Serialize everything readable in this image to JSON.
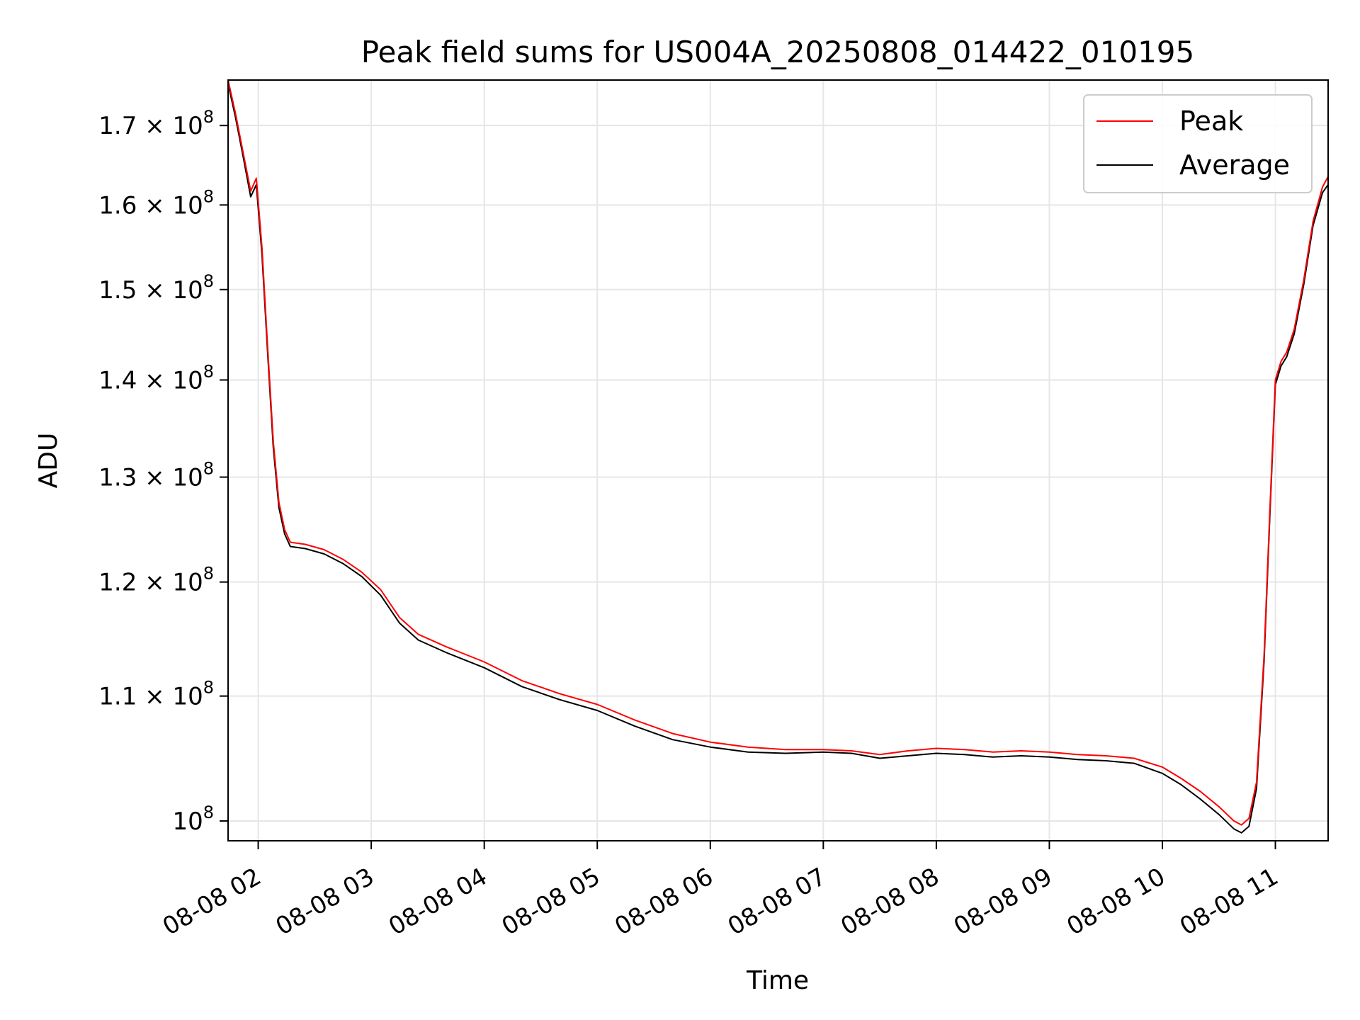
{
  "chart_data": {
    "type": "line",
    "title": "Peak field sums for US004A_20250808_014422_010195",
    "xlabel": "Time",
    "ylabel": "ADU",
    "yscale": "log",
    "grid": true,
    "legend_placement": "top-right",
    "x_range": [
      "08-08 01:44",
      "08-08 11:28"
    ],
    "y_range": [
      98500000,
      176000000
    ],
    "x_ticks": [
      {
        "t": "08-08 02:00",
        "label": "08-08 02"
      },
      {
        "t": "08-08 03:00",
        "label": "08-08 03"
      },
      {
        "t": "08-08 04:00",
        "label": "08-08 04"
      },
      {
        "t": "08-08 05:00",
        "label": "08-08 05"
      },
      {
        "t": "08-08 06:00",
        "label": "08-08 06"
      },
      {
        "t": "08-08 07:00",
        "label": "08-08 07"
      },
      {
        "t": "08-08 08:00",
        "label": "08-08 08"
      },
      {
        "t": "08-08 09:00",
        "label": "08-08 09"
      },
      {
        "t": "08-08 10:00",
        "label": "08-08 10"
      },
      {
        "t": "08-08 11:00",
        "label": "08-08 11"
      }
    ],
    "y_ticks": [
      {
        "v": 100000000,
        "mant": "",
        "exp": "8"
      },
      {
        "v": 110000000,
        "mant": "1.1",
        "exp": "8"
      },
      {
        "v": 120000000,
        "mant": "1.2",
        "exp": "8"
      },
      {
        "v": 130000000,
        "mant": "1.3",
        "exp": "8"
      },
      {
        "v": 140000000,
        "mant": "1.4",
        "exp": "8"
      },
      {
        "v": 150000000,
        "mant": "1.5",
        "exp": "8"
      },
      {
        "v": 160000000,
        "mant": "1.6",
        "exp": "8"
      },
      {
        "v": 170000000,
        "mant": "1.7",
        "exp": "8"
      }
    ],
    "series": [
      {
        "name": "Average",
        "color": "#000000",
        "points": [
          [
            "08-08 01:44",
            175500000
          ],
          [
            "08-08 01:48",
            171000000
          ],
          [
            "08-08 01:52",
            166000000
          ],
          [
            "08-08 01:56",
            161000000
          ],
          [
            "08-08 01:59",
            162500000
          ],
          [
            "08-08 02:02",
            154000000
          ],
          [
            "08-08 02:05",
            143000000
          ],
          [
            "08-08 02:08",
            133000000
          ],
          [
            "08-08 02:11",
            127000000
          ],
          [
            "08-08 02:14",
            124500000
          ],
          [
            "08-08 02:17",
            123300000
          ],
          [
            "08-08 02:25",
            123100000
          ],
          [
            "08-08 02:35",
            122600000
          ],
          [
            "08-08 02:45",
            121700000
          ],
          [
            "08-08 02:55",
            120500000
          ],
          [
            "08-08 03:05",
            118800000
          ],
          [
            "08-08 03:15",
            116300000
          ],
          [
            "08-08 03:25",
            114800000
          ],
          [
            "08-08 03:40",
            113700000
          ],
          [
            "08-08 04:00",
            112400000
          ],
          [
            "08-08 04:20",
            110800000
          ],
          [
            "08-08 04:40",
            109700000
          ],
          [
            "08-08 05:00",
            108800000
          ],
          [
            "08-08 05:20",
            107500000
          ],
          [
            "08-08 05:40",
            106400000
          ],
          [
            "08-08 06:00",
            105800000
          ],
          [
            "08-08 06:20",
            105400000
          ],
          [
            "08-08 06:40",
            105300000
          ],
          [
            "08-08 07:00",
            105400000
          ],
          [
            "08-08 07:15",
            105300000
          ],
          [
            "08-08 07:30",
            104900000
          ],
          [
            "08-08 07:45",
            105100000
          ],
          [
            "08-08 08:00",
            105300000
          ],
          [
            "08-08 08:15",
            105200000
          ],
          [
            "08-08 08:30",
            105000000
          ],
          [
            "08-08 08:45",
            105100000
          ],
          [
            "08-08 09:00",
            105000000
          ],
          [
            "08-08 09:15",
            104800000
          ],
          [
            "08-08 09:30",
            104700000
          ],
          [
            "08-08 09:45",
            104500000
          ],
          [
            "08-08 10:00",
            103700000
          ],
          [
            "08-08 10:10",
            102800000
          ],
          [
            "08-08 10:20",
            101700000
          ],
          [
            "08-08 10:30",
            100500000
          ],
          [
            "08-08 10:38",
            99400000
          ],
          [
            "08-08 10:42",
            99100000
          ],
          [
            "08-08 10:46",
            99600000
          ],
          [
            "08-08 10:50",
            102500000
          ],
          [
            "08-08 10:54",
            113000000
          ],
          [
            "08-08 10:57",
            126000000
          ],
          [
            "08-08 11:00",
            139500000
          ],
          [
            "08-08 11:03",
            141500000
          ],
          [
            "08-08 11:06",
            142500000
          ],
          [
            "08-08 11:10",
            145000000
          ],
          [
            "08-08 11:15",
            150500000
          ],
          [
            "08-08 11:20",
            157500000
          ],
          [
            "08-08 11:25",
            161500000
          ],
          [
            "08-08 11:28",
            162500000
          ]
        ]
      },
      {
        "name": "Peak",
        "color": "#ff0000",
        "points": [
          [
            "08-08 01:44",
            176000000
          ],
          [
            "08-08 01:48",
            171500000
          ],
          [
            "08-08 01:52",
            166500000
          ],
          [
            "08-08 01:56",
            161700000
          ],
          [
            "08-08 01:59",
            163300000
          ],
          [
            "08-08 02:02",
            154800000
          ],
          [
            "08-08 02:05",
            143600000
          ],
          [
            "08-08 02:08",
            133600000
          ],
          [
            "08-08 02:11",
            127500000
          ],
          [
            "08-08 02:14",
            124900000
          ],
          [
            "08-08 02:17",
            123700000
          ],
          [
            "08-08 02:25",
            123500000
          ],
          [
            "08-08 02:35",
            123000000
          ],
          [
            "08-08 02:45",
            122100000
          ],
          [
            "08-08 02:55",
            120900000
          ],
          [
            "08-08 03:05",
            119300000
          ],
          [
            "08-08 03:15",
            116800000
          ],
          [
            "08-08 03:25",
            115300000
          ],
          [
            "08-08 03:40",
            114200000
          ],
          [
            "08-08 04:00",
            112900000
          ],
          [
            "08-08 04:20",
            111300000
          ],
          [
            "08-08 04:40",
            110200000
          ],
          [
            "08-08 05:00",
            109300000
          ],
          [
            "08-08 05:20",
            108000000
          ],
          [
            "08-08 05:40",
            106900000
          ],
          [
            "08-08 06:00",
            106200000
          ],
          [
            "08-08 06:20",
            105800000
          ],
          [
            "08-08 06:40",
            105600000
          ],
          [
            "08-08 07:00",
            105600000
          ],
          [
            "08-08 07:15",
            105500000
          ],
          [
            "08-08 07:30",
            105200000
          ],
          [
            "08-08 07:45",
            105500000
          ],
          [
            "08-08 08:00",
            105700000
          ],
          [
            "08-08 08:15",
            105600000
          ],
          [
            "08-08 08:30",
            105400000
          ],
          [
            "08-08 08:45",
            105500000
          ],
          [
            "08-08 09:00",
            105400000
          ],
          [
            "08-08 09:15",
            105200000
          ],
          [
            "08-08 09:30",
            105100000
          ],
          [
            "08-08 09:45",
            104900000
          ],
          [
            "08-08 10:00",
            104200000
          ],
          [
            "08-08 10:10",
            103300000
          ],
          [
            "08-08 10:20",
            102300000
          ],
          [
            "08-08 10:30",
            101100000
          ],
          [
            "08-08 10:38",
            100000000
          ],
          [
            "08-08 10:42",
            99700000
          ],
          [
            "08-08 10:46",
            100200000
          ],
          [
            "08-08 10:50",
            103000000
          ],
          [
            "08-08 10:54",
            113500000
          ],
          [
            "08-08 10:57",
            126500000
          ],
          [
            "08-08 11:00",
            140000000
          ],
          [
            "08-08 11:03",
            142000000
          ],
          [
            "08-08 11:06",
            143000000
          ],
          [
            "08-08 11:10",
            145500000
          ],
          [
            "08-08 11:15",
            151000000
          ],
          [
            "08-08 11:20",
            158000000
          ],
          [
            "08-08 11:25",
            162200000
          ],
          [
            "08-08 11:28",
            163500000
          ]
        ]
      }
    ]
  },
  "legend": [
    {
      "label": "Peak",
      "color": "#ff0000"
    },
    {
      "label": "Average",
      "color": "#000000"
    }
  ]
}
